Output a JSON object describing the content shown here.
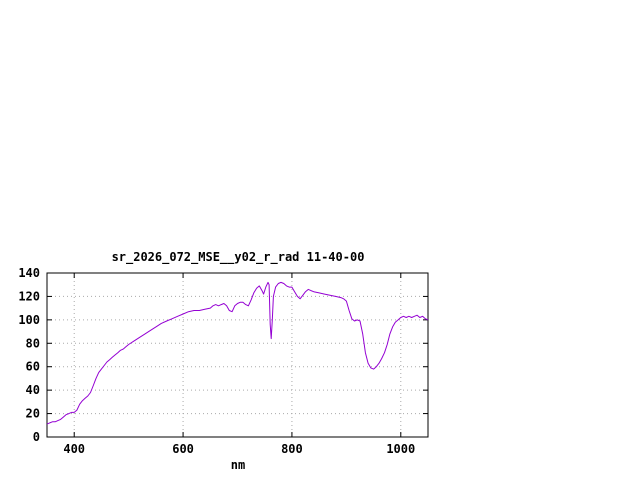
{
  "window": {
    "background": "#ffffff"
  },
  "chart_data": {
    "type": "line",
    "title": "sr_2026_072_MSE__y02_r_rad 11-40-00",
    "xlabel": "nm",
    "ylabel": "",
    "xlim": [
      350,
      1050
    ],
    "ylim": [
      0,
      140
    ],
    "xticks": [
      400,
      600,
      800,
      1000
    ],
    "yticks": [
      0,
      20,
      40,
      60,
      80,
      100,
      120,
      140
    ],
    "grid": true,
    "legend_position": "none",
    "line_color": "#9400d3",
    "axis_color": "#000000",
    "grid_color": "#aaaaaa",
    "series": [
      {
        "name": "sr_2026_072_MSE__y02_r_rad",
        "points": [
          [
            350,
            11
          ],
          [
            355,
            12
          ],
          [
            360,
            13
          ],
          [
            365,
            13
          ],
          [
            370,
            14
          ],
          [
            375,
            15
          ],
          [
            380,
            17
          ],
          [
            385,
            19
          ],
          [
            390,
            20
          ],
          [
            395,
            21
          ],
          [
            400,
            21
          ],
          [
            405,
            23
          ],
          [
            410,
            28
          ],
          [
            415,
            31
          ],
          [
            420,
            33
          ],
          [
            425,
            35
          ],
          [
            430,
            38
          ],
          [
            435,
            44
          ],
          [
            440,
            50
          ],
          [
            445,
            55
          ],
          [
            450,
            58
          ],
          [
            455,
            61
          ],
          [
            460,
            64
          ],
          [
            465,
            66
          ],
          [
            470,
            68
          ],
          [
            475,
            70
          ],
          [
            480,
            72
          ],
          [
            485,
            74
          ],
          [
            490,
            75
          ],
          [
            495,
            77
          ],
          [
            500,
            79
          ],
          [
            510,
            82
          ],
          [
            520,
            85
          ],
          [
            530,
            88
          ],
          [
            540,
            91
          ],
          [
            550,
            94
          ],
          [
            560,
            97
          ],
          [
            570,
            99
          ],
          [
            580,
            101
          ],
          [
            590,
            103
          ],
          [
            600,
            105
          ],
          [
            610,
            107
          ],
          [
            620,
            108
          ],
          [
            630,
            108
          ],
          [
            640,
            109
          ],
          [
            650,
            110
          ],
          [
            655,
            112
          ],
          [
            660,
            113
          ],
          [
            665,
            112
          ],
          [
            670,
            113
          ],
          [
            675,
            114
          ],
          [
            680,
            112
          ],
          [
            685,
            108
          ],
          [
            690,
            107
          ],
          [
            695,
            112
          ],
          [
            700,
            114
          ],
          [
            705,
            115
          ],
          [
            710,
            115
          ],
          [
            715,
            113
          ],
          [
            720,
            112
          ],
          [
            725,
            117
          ],
          [
            730,
            123
          ],
          [
            735,
            127
          ],
          [
            740,
            129
          ],
          [
            745,
            125
          ],
          [
            748,
            122
          ],
          [
            752,
            128
          ],
          [
            756,
            132
          ],
          [
            758,
            130
          ],
          [
            760,
            96
          ],
          [
            762,
            84
          ],
          [
            764,
            100
          ],
          [
            766,
            120
          ],
          [
            770,
            128
          ],
          [
            775,
            131
          ],
          [
            780,
            132
          ],
          [
            785,
            131
          ],
          [
            790,
            129
          ],
          [
            795,
            128
          ],
          [
            800,
            128
          ],
          [
            805,
            124
          ],
          [
            810,
            120
          ],
          [
            815,
            118
          ],
          [
            820,
            121
          ],
          [
            825,
            124
          ],
          [
            830,
            126
          ],
          [
            835,
            125
          ],
          [
            840,
            124
          ],
          [
            850,
            123
          ],
          [
            860,
            122
          ],
          [
            870,
            121
          ],
          [
            880,
            120
          ],
          [
            890,
            119
          ],
          [
            895,
            118
          ],
          [
            900,
            116
          ],
          [
            905,
            108
          ],
          [
            910,
            101
          ],
          [
            915,
            99
          ],
          [
            920,
            100
          ],
          [
            925,
            99
          ],
          [
            930,
            88
          ],
          [
            935,
            72
          ],
          [
            940,
            63
          ],
          [
            945,
            59
          ],
          [
            950,
            58
          ],
          [
            955,
            60
          ],
          [
            960,
            63
          ],
          [
            965,
            67
          ],
          [
            970,
            72
          ],
          [
            975,
            79
          ],
          [
            980,
            88
          ],
          [
            985,
            94
          ],
          [
            990,
            98
          ],
          [
            995,
            100
          ],
          [
            1000,
            102
          ],
          [
            1005,
            103
          ],
          [
            1010,
            102
          ],
          [
            1015,
            103
          ],
          [
            1020,
            102
          ],
          [
            1025,
            103
          ],
          [
            1030,
            104
          ],
          [
            1035,
            102
          ],
          [
            1040,
            103
          ],
          [
            1045,
            101
          ],
          [
            1050,
            100
          ]
        ]
      }
    ]
  }
}
